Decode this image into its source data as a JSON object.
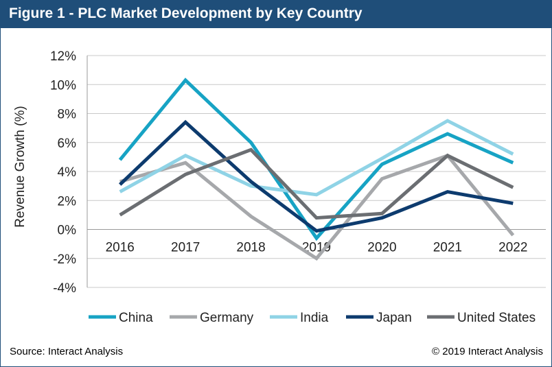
{
  "figure": {
    "title": "Figure 1 - PLC Market Development by Key Country",
    "source": "Source: Interact Analysis",
    "copyright": "© 2019 Interact Analysis"
  },
  "chart_data": {
    "type": "line",
    "title": "Figure 1 - PLC Market Development by Key Country",
    "xlabel": "",
    "ylabel": "Revenue Growth (%)",
    "categories": [
      "2016",
      "2017",
      "2018",
      "2019",
      "2020",
      "2021",
      "2022"
    ],
    "ylim": [
      -4,
      12
    ],
    "yticks": [
      -4,
      -2,
      0,
      2,
      4,
      6,
      8,
      10,
      12
    ],
    "ytick_labels": [
      "-4%",
      "-2%",
      "0%",
      "2%",
      "4%",
      "6%",
      "8%",
      "10%",
      "12%"
    ],
    "grid": true,
    "legend_position": "bottom",
    "series": [
      {
        "name": "China",
        "color": "#17a3c4",
        "values": [
          4.8,
          10.3,
          6.0,
          -0.6,
          4.5,
          6.6,
          4.6
        ]
      },
      {
        "name": "Germany",
        "color": "#a6a8ab",
        "values": [
          3.3,
          4.6,
          0.9,
          -2.0,
          3.5,
          5.1,
          -0.4
        ]
      },
      {
        "name": "India",
        "color": "#8fd3e6",
        "values": [
          2.6,
          5.1,
          3.0,
          2.4,
          4.9,
          7.5,
          5.2
        ]
      },
      {
        "name": "Japan",
        "color": "#0d3b6e",
        "values": [
          3.1,
          7.4,
          3.3,
          -0.1,
          0.8,
          2.6,
          1.8
        ]
      },
      {
        "name": "United States",
        "color": "#6b6e72",
        "values": [
          1.0,
          3.8,
          5.5,
          0.8,
          1.1,
          5.1,
          2.9
        ]
      }
    ]
  }
}
